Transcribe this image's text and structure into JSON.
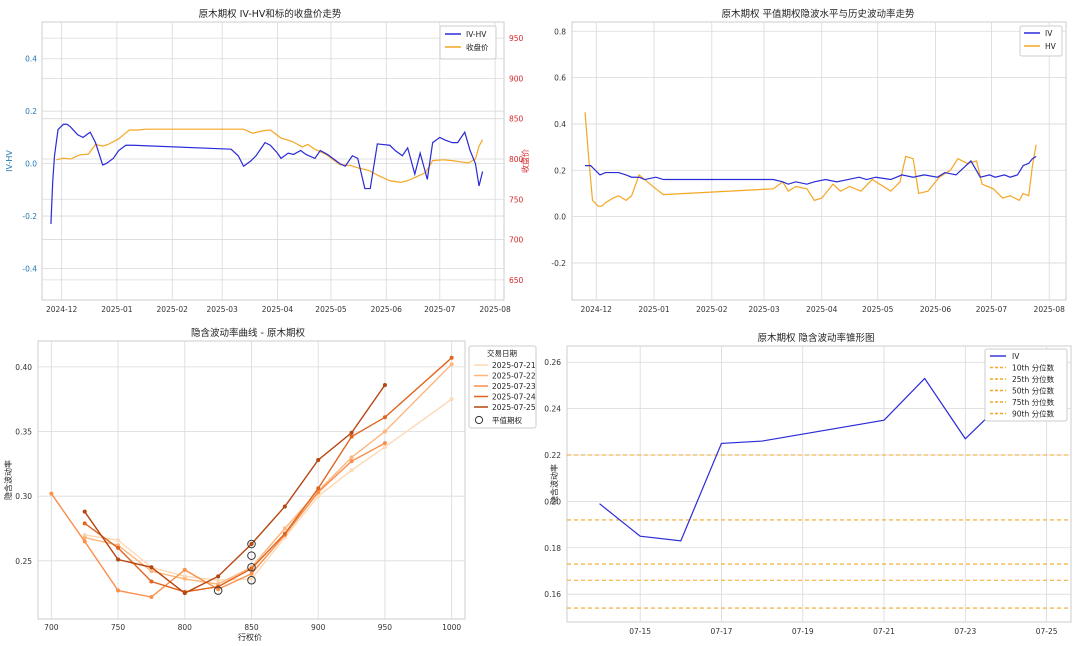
{
  "colors": {
    "blue": "#2a2ad8",
    "orange": "#f5a623",
    "red_axis": "#d62728",
    "left_axis_blue": "#1f77b4",
    "grid": "#d9d9d9",
    "frame": "#cccccc",
    "pct_line": "#f5a623",
    "date_series": [
      "#fdd9b5",
      "#fdb67e",
      "#f98f4a",
      "#e0651f",
      "#b6450f"
    ],
    "atm_marker": "#333333"
  },
  "chart_data": [
    {
      "id": "panel1",
      "type": "line",
      "title": "原木期权 IV-HV和标的收盘价走势",
      "xlabel": "",
      "ylabel": "IV-HV",
      "y2label": "收盘价",
      "x_tick_labels": [
        "2024-12",
        "2025-01",
        "2025-02",
        "2025-03",
        "2025-04",
        "2025-05",
        "2025-06",
        "2025-07",
        "2025-08"
      ],
      "ylim": [
        -0.52,
        0.54
      ],
      "y_ticks": [
        "-0.4",
        "-0.2",
        "0.0",
        "0.2",
        "0.4"
      ],
      "y2lim": [
        625,
        970
      ],
      "y2_ticks": [
        "650",
        "700",
        "750",
        "800",
        "850",
        "900",
        "950"
      ],
      "legend_position": "top-right",
      "series": [
        {
          "name": "IV-HV",
          "axis": "left",
          "x": [
            "2024-11-25",
            "2024-11-26",
            "2024-11-27",
            "2024-11-28",
            "2024-11-29",
            "2024-12-02",
            "2024-12-04",
            "2024-12-06",
            "2024-12-10",
            "2024-12-13",
            "2024-12-17",
            "2024-12-20",
            "2024-12-24",
            "2024-12-26",
            "2024-12-30",
            "2025-01-02",
            "2025-01-06",
            "2025-01-10",
            "2025-03-06",
            "2025-03-10",
            "2025-03-13",
            "2025-03-17",
            "2025-03-20",
            "2025-03-25",
            "2025-03-28",
            "2025-04-01",
            "2025-04-03",
            "2025-04-07",
            "2025-04-10",
            "2025-04-14",
            "2025-04-17",
            "2025-04-22",
            "2025-04-25",
            "2025-04-29",
            "2025-05-06",
            "2025-05-09",
            "2025-05-13",
            "2025-05-16",
            "2025-05-20",
            "2025-05-23",
            "2025-05-27",
            "2025-06-03",
            "2025-06-06",
            "2025-06-10",
            "2025-06-13",
            "2025-06-17",
            "2025-06-20",
            "2025-06-24",
            "2025-06-27",
            "2025-07-01",
            "2025-07-04",
            "2025-07-08",
            "2025-07-11",
            "2025-07-15",
            "2025-07-18",
            "2025-07-21",
            "2025-07-23",
            "2025-07-25"
          ],
          "y": [
            -0.23,
            -0.07,
            0.03,
            0.08,
            0.13,
            0.15,
            0.15,
            0.14,
            0.11,
            0.1,
            0.12,
            0.08,
            -0.005,
            0.0,
            0.02,
            0.05,
            0.07,
            0.07,
            0.055,
            0.03,
            -0.01,
            0.01,
            0.03,
            0.08,
            0.07,
            0.04,
            0.02,
            0.04,
            0.035,
            0.05,
            0.035,
            0.02,
            0.05,
            0.035,
            0.0,
            -0.01,
            0.03,
            0.02,
            -0.095,
            -0.095,
            0.075,
            0.07,
            0.05,
            0.03,
            0.06,
            -0.04,
            0.04,
            -0.06,
            0.08,
            0.1,
            0.09,
            0.08,
            0.08,
            0.12,
            0.05,
            0.0,
            -0.085,
            -0.03
          ]
        },
        {
          "name": "收盘价",
          "axis": "right",
          "x": [
            "2024-11-28",
            "2024-12-02",
            "2024-12-06",
            "2024-12-11",
            "2024-12-16",
            "2024-12-20",
            "2024-12-24",
            "2024-12-27",
            "2025-01-02",
            "2025-01-08",
            "2025-01-13",
            "2025-01-17",
            "2025-03-07",
            "2025-03-13",
            "2025-03-18",
            "2025-03-24",
            "2025-03-28",
            "2025-04-03",
            "2025-04-09",
            "2025-04-15",
            "2025-04-18",
            "2025-04-22",
            "2025-04-28",
            "2025-05-06",
            "2025-05-12",
            "2025-05-16",
            "2025-05-22",
            "2025-05-28",
            "2025-06-03",
            "2025-06-09",
            "2025-06-13",
            "2025-06-18",
            "2025-06-23",
            "2025-06-27",
            "2025-07-03",
            "2025-07-08",
            "2025-07-14",
            "2025-07-17",
            "2025-07-21",
            "2025-07-23",
            "2025-07-25"
          ],
          "y": [
            799,
            801,
            800,
            805,
            806,
            818,
            816,
            818,
            825,
            836,
            836,
            837,
            837,
            837,
            832,
            835,
            836,
            826,
            822,
            815,
            818,
            812,
            806,
            793,
            792,
            789,
            786,
            779,
            773,
            771,
            773,
            778,
            783,
            798,
            799,
            798,
            796,
            795,
            800,
            816,
            824
          ]
        }
      ]
    },
    {
      "id": "panel2",
      "type": "line",
      "title": "原木期权 平值期权隐波水平与历史波动率走势",
      "xlabel": "",
      "ylabel": "",
      "x_tick_labels": [
        "2024-12",
        "2025-01",
        "2025-02",
        "2025-03",
        "2025-04",
        "2025-05",
        "2025-06",
        "2025-07",
        "2025-08"
      ],
      "ylim": [
        -0.36,
        0.84
      ],
      "y_ticks": [
        "-0.2",
        "0.0",
        "0.2",
        "0.4",
        "0.6",
        "0.8"
      ],
      "legend_position": "top-right",
      "series": [
        {
          "name": "IV",
          "x": [
            "2024-11-25",
            "2024-11-28",
            "2024-12-03",
            "2024-12-06",
            "2024-12-10",
            "2024-12-13",
            "2024-12-17",
            "2024-12-20",
            "2024-12-24",
            "2024-12-27",
            "2025-01-02",
            "2025-01-06",
            "2025-01-10",
            "2025-03-06",
            "2025-03-11",
            "2025-03-14",
            "2025-03-18",
            "2025-03-24",
            "2025-03-28",
            "2025-04-03",
            "2025-04-09",
            "2025-04-15",
            "2025-04-21",
            "2025-04-25",
            "2025-04-30",
            "2025-05-08",
            "2025-05-14",
            "2025-05-20",
            "2025-05-26",
            "2025-06-02",
            "2025-06-06",
            "2025-06-12",
            "2025-06-16",
            "2025-06-20",
            "2025-06-25",
            "2025-06-30",
            "2025-07-03",
            "2025-07-08",
            "2025-07-11",
            "2025-07-15",
            "2025-07-18",
            "2025-07-21",
            "2025-07-23",
            "2025-07-25"
          ],
          "y": [
            0.22,
            0.22,
            0.18,
            0.19,
            0.19,
            0.19,
            0.18,
            0.17,
            0.17,
            0.16,
            0.17,
            0.16,
            0.16,
            0.16,
            0.15,
            0.14,
            0.15,
            0.14,
            0.15,
            0.16,
            0.15,
            0.16,
            0.17,
            0.16,
            0.17,
            0.16,
            0.18,
            0.17,
            0.18,
            0.17,
            0.19,
            0.18,
            0.21,
            0.24,
            0.17,
            0.18,
            0.17,
            0.18,
            0.17,
            0.18,
            0.22,
            0.23,
            0.25,
            0.26
          ]
        },
        {
          "name": "HV",
          "x": [
            "2024-11-25",
            "2024-11-27",
            "2024-11-29",
            "2024-12-02",
            "2024-12-04",
            "2024-12-06",
            "2024-12-10",
            "2024-12-13",
            "2024-12-17",
            "2024-12-20",
            "2024-12-24",
            "2024-12-27",
            "2025-01-02",
            "2025-01-06",
            "2025-03-06",
            "2025-03-11",
            "2025-03-14",
            "2025-03-18",
            "2025-03-24",
            "2025-03-28",
            "2025-04-01",
            "2025-04-07",
            "2025-04-11",
            "2025-04-16",
            "2025-04-22",
            "2025-04-28",
            "2025-05-08",
            "2025-05-13",
            "2025-05-16",
            "2025-05-20",
            "2025-05-23",
            "2025-05-28",
            "2025-06-03",
            "2025-06-09",
            "2025-06-13",
            "2025-06-18",
            "2025-06-23",
            "2025-06-26",
            "2025-07-02",
            "2025-07-07",
            "2025-07-11",
            "2025-07-16",
            "2025-07-18",
            "2025-07-21",
            "2025-07-23",
            "2025-07-25"
          ],
          "y": [
            0.45,
            0.25,
            0.07,
            0.045,
            0.045,
            0.06,
            0.08,
            0.09,
            0.07,
            0.09,
            0.18,
            0.16,
            0.12,
            0.095,
            0.12,
            0.15,
            0.11,
            0.13,
            0.12,
            0.07,
            0.08,
            0.14,
            0.11,
            0.13,
            0.11,
            0.16,
            0.11,
            0.15,
            0.26,
            0.25,
            0.1,
            0.11,
            0.17,
            0.2,
            0.25,
            0.23,
            0.24,
            0.14,
            0.12,
            0.08,
            0.09,
            0.07,
            0.1,
            0.09,
            0.22,
            0.31
          ]
        }
      ]
    },
    {
      "id": "panel3",
      "type": "line",
      "title": "隐含波动率曲线 - 原木期权",
      "xlabel": "行权价",
      "ylabel": "隐含波动率",
      "xlim": [
        690,
        1010
      ],
      "x_ticks": [
        700,
        750,
        800,
        850,
        900,
        950,
        1000
      ],
      "ylim": [
        0.205,
        0.42
      ],
      "y_ticks": [
        "0.25",
        "0.30",
        "0.35",
        "0.40"
      ],
      "legend_title": "交易日期",
      "legend_position": "top-right",
      "atm_label": "平值期权",
      "series": [
        {
          "name": "2025-07-21",
          "x": [
            725,
            750,
            775,
            800,
            825,
            850,
            875,
            900,
            925,
            950,
            1000
          ],
          "y": [
            0.27,
            0.266,
            0.245,
            0.238,
            0.235,
            0.236,
            0.268,
            0.3,
            0.32,
            0.338,
            0.375
          ]
        },
        {
          "name": "2025-07-22",
          "x": [
            725,
            750,
            775,
            800,
            825,
            850,
            875,
            900,
            925,
            950,
            1000
          ],
          "y": [
            0.268,
            0.262,
            0.242,
            0.236,
            0.232,
            0.245,
            0.275,
            0.304,
            0.33,
            0.35,
            0.402
          ]
        },
        {
          "name": "2025-07-23",
          "x": [
            700,
            725,
            750,
            775,
            800,
            825,
            850,
            875,
            900,
            925,
            950
          ],
          "y": [
            0.302,
            0.265,
            0.227,
            0.222,
            0.243,
            0.228,
            0.24,
            0.27,
            0.303,
            0.327,
            0.341
          ]
        },
        {
          "name": "2025-07-24",
          "x": [
            725,
            750,
            775,
            800,
            825,
            850,
            875,
            900,
            925,
            950,
            1000
          ],
          "y": [
            0.279,
            0.26,
            0.234,
            0.226,
            0.23,
            0.244,
            0.271,
            0.306,
            0.346,
            0.361,
            0.407
          ]
        },
        {
          "name": "2025-07-25",
          "x": [
            725,
            750,
            775,
            800,
            825,
            850,
            875,
            900,
            925,
            950
          ],
          "y": [
            0.288,
            0.251,
            0.245,
            0.225,
            0.238,
            0.263,
            0.292,
            0.328,
            0.349,
            0.386
          ]
        }
      ],
      "atm_points": [
        {
          "x": 850,
          "y": 0.235
        },
        {
          "x": 850,
          "y": 0.245
        },
        {
          "x": 850,
          "y": 0.254
        },
        {
          "x": 850,
          "y": 0.263
        },
        {
          "x": 825,
          "y": 0.227
        }
      ]
    },
    {
      "id": "panel4",
      "type": "line",
      "title": "原木期权 隐含波动率锥形图",
      "xlabel": "",
      "ylabel": "隐含波动率",
      "x_tick_labels": [
        "07-15",
        "07-17",
        "07-19",
        "07-21",
        "07-23",
        "07-25"
      ],
      "ylim": [
        0.148,
        0.267
      ],
      "y_ticks": [
        "0.16",
        "0.18",
        "0.20",
        "0.22",
        "0.24",
        "0.26"
      ],
      "legend_position": "top-right",
      "series": [
        {
          "name": "IV",
          "x": [
            "07-14",
            "07-15",
            "07-16",
            "07-17",
            "07-18",
            "07-21",
            "07-22",
            "07-23",
            "07-24"
          ],
          "y": [
            0.199,
            0.185,
            0.183,
            0.225,
            0.226,
            0.235,
            0.253,
            0.227,
            0.244
          ]
        }
      ],
      "percentiles": [
        {
          "name": "10th 分位数",
          "y": 0.154
        },
        {
          "name": "25th 分位数",
          "y": 0.166
        },
        {
          "name": "50th 分位数",
          "y": 0.173
        },
        {
          "name": "75th 分位数",
          "y": 0.192
        },
        {
          "name": "90th 分位数",
          "y": 0.22
        }
      ]
    }
  ]
}
